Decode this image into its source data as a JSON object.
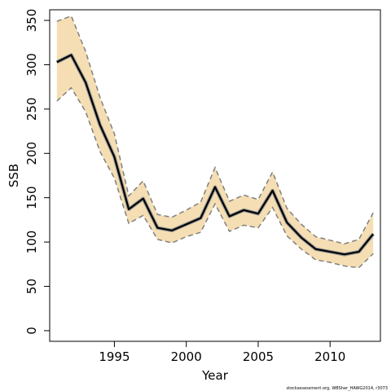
{
  "chart_data": {
    "type": "line",
    "xlabel": "Year",
    "ylabel": "SSB",
    "xlim": [
      1990.5,
      2013.5
    ],
    "ylim": [
      -12,
      362
    ],
    "xticks": [
      1995,
      2000,
      2005,
      2010
    ],
    "yticks": [
      0,
      50,
      100,
      150,
      200,
      250,
      300,
      350
    ],
    "grid": false,
    "legend": "none",
    "footer_text": "stockassessment.org, WBSher_HAWG2014, r3073",
    "x": [
      1991,
      1992,
      1993,
      1994,
      1995,
      1996,
      1997,
      1998,
      1999,
      2000,
      2001,
      2002,
      2003,
      2004,
      2005,
      2006,
      2007,
      2008,
      2009,
      2010,
      2011,
      2012,
      2013
    ],
    "series": [
      {
        "role": "estimate",
        "values": [
          303,
          311,
          280,
          232,
          196,
          137,
          149,
          116,
          113,
          120,
          127,
          162,
          129,
          136,
          132,
          158,
          122,
          105,
          92,
          89,
          86,
          89,
          109
        ]
      },
      {
        "role": "upper-bound",
        "values": [
          349,
          355,
          315,
          263,
          222,
          152,
          169,
          131,
          128,
          136,
          145,
          184,
          146,
          153,
          148,
          179,
          138,
          120,
          106,
          102,
          98,
          103,
          133
        ]
      },
      {
        "role": "lower-bound",
        "values": [
          259,
          274,
          247,
          202,
          172,
          121,
          130,
          103,
          99,
          106,
          111,
          143,
          112,
          119,
          116,
          139,
          107,
          92,
          80,
          77,
          73,
          71,
          87
        ]
      }
    ],
    "colors": {
      "band": "#f5deb3",
      "estimate": "#000000",
      "bounds": "#808080",
      "axis": "#000000"
    }
  }
}
